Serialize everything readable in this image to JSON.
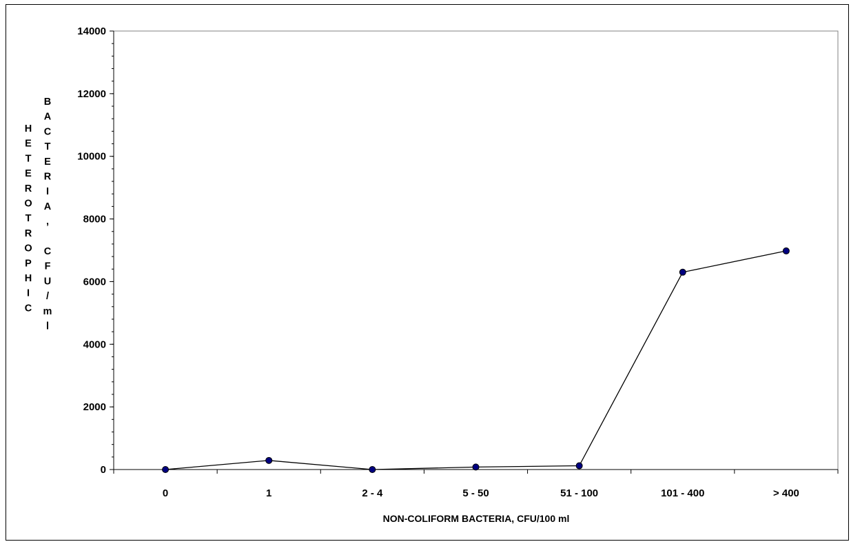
{
  "chart_data": {
    "type": "line",
    "categories": [
      "0",
      "1",
      "2 - 4",
      "5 - 50",
      "51 - 100",
      "101 - 400",
      "> 400"
    ],
    "series": [
      {
        "values": [
          0,
          290,
          0,
          80,
          120,
          6300,
          6980
        ]
      }
    ],
    "xlabel": "NON-COLIFORM BACTERIA, CFU/100 ml",
    "ylabel_col1": "HETEROTROPHIC",
    "ylabel_col2": "BACTERIA, CFU/ml",
    "ylim": [
      0,
      14000
    ],
    "yticks": [
      "0",
      "2000",
      "4000",
      "6000",
      "8000",
      "10000",
      "12000",
      "14000"
    ],
    "grid": false,
    "legend": "none",
    "colors": {
      "line": "#000000",
      "marker": "#000080",
      "frame": "#808080"
    }
  }
}
